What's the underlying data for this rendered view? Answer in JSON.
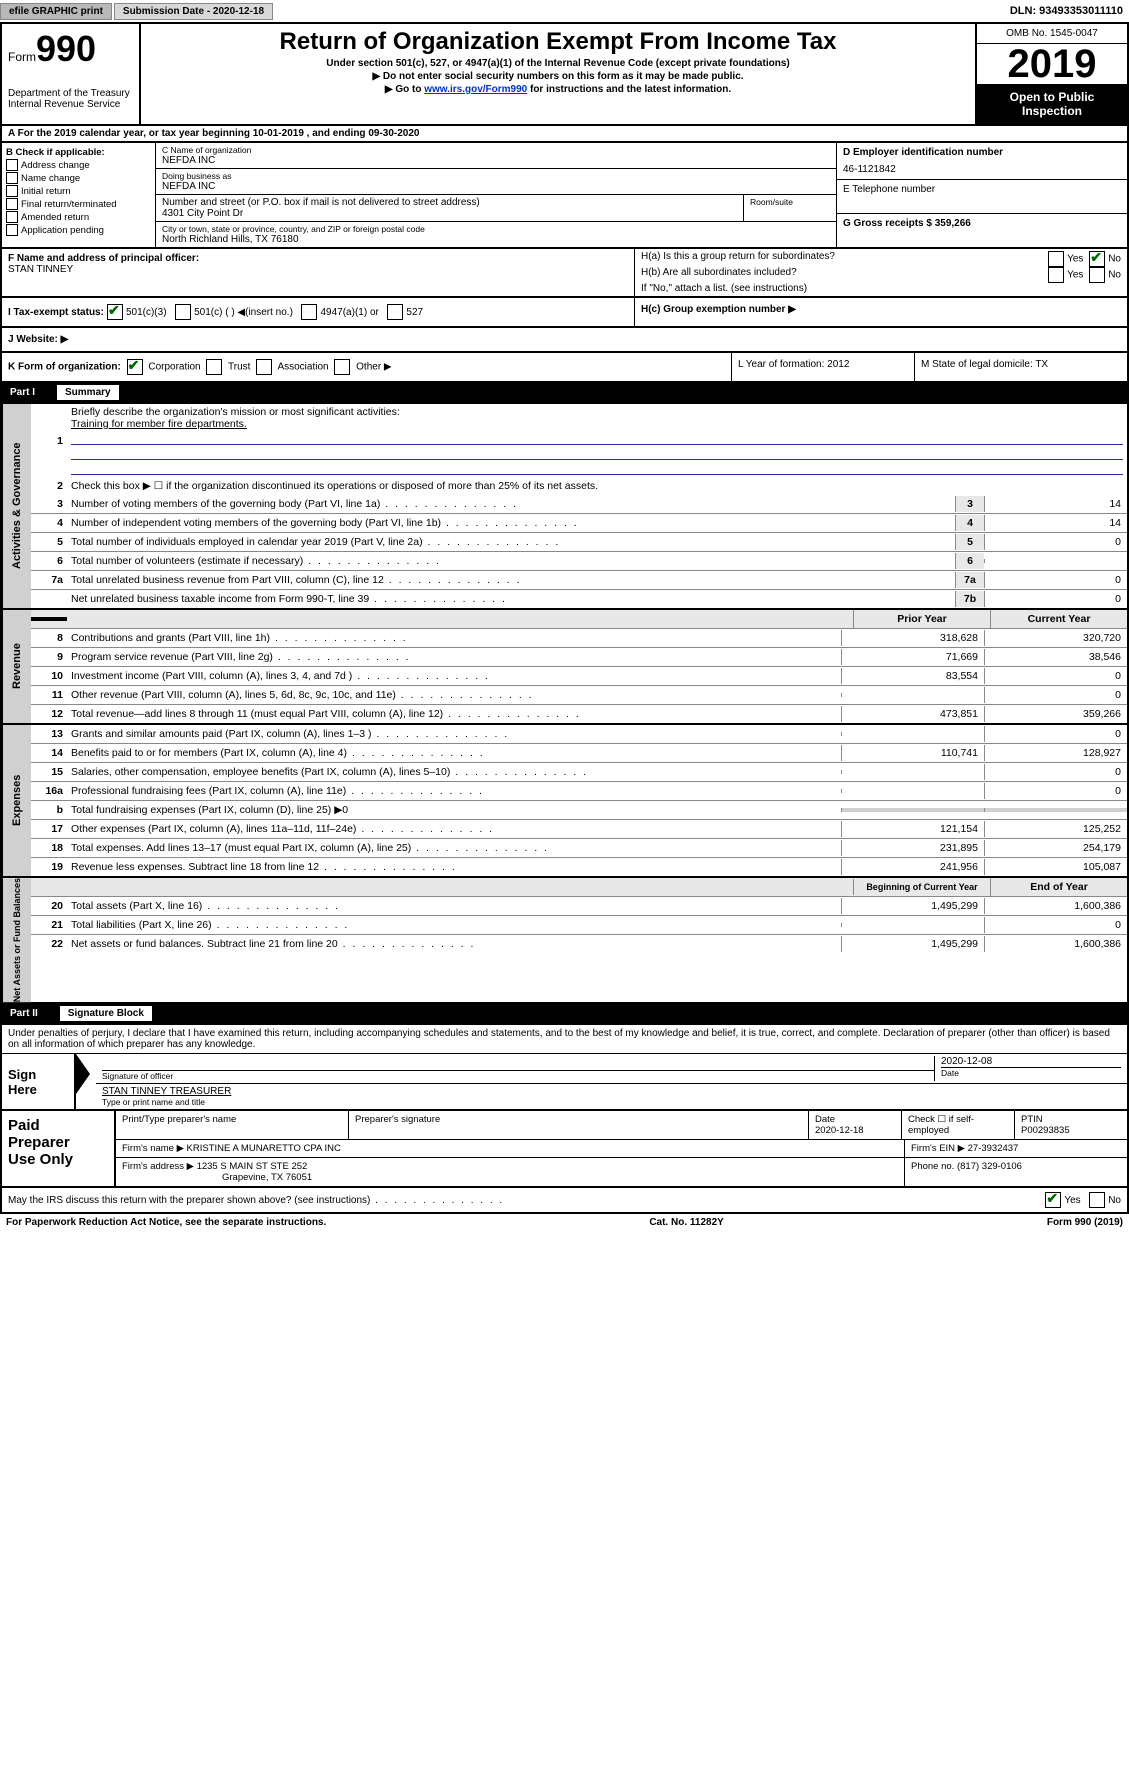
{
  "top_bar": {
    "efile_btn": "efile GRAPHIC print",
    "sub_date_label": "Submission Date - 2020-12-18",
    "dln": "DLN: 93493353011110"
  },
  "header": {
    "form_word": "Form",
    "form_num": "990",
    "dept": "Department of the Treasury",
    "irs": "Internal Revenue Service",
    "title": "Return of Organization Exempt From Income Tax",
    "sub1": "Under section 501(c), 527, or 4947(a)(1) of the Internal Revenue Code (except private foundations)",
    "sub2": "▶ Do not enter social security numbers on this form as it may be made public.",
    "sub3_pre": "▶ Go to ",
    "sub3_link": "www.irs.gov/Form990",
    "sub3_post": " for instructions and the latest information.",
    "omb": "OMB No. 1545-0047",
    "year": "2019",
    "open1": "Open to Public",
    "open2": "Inspection"
  },
  "line_a": "A For the 2019 calendar year, or tax year beginning 10-01-2019      , and ending 09-30-2020",
  "block_b": {
    "title": "B Check if applicable:",
    "opts": [
      "Address change",
      "Name change",
      "Initial return",
      "Final return/terminated",
      "Amended return",
      "Application pending"
    ]
  },
  "block_c": {
    "name_lbl": "C Name of organization",
    "name": "NEFDA INC",
    "dba_lbl": "Doing business as",
    "dba": "NEFDA INC",
    "addr_lbl": "Number and street (or P.O. box if mail is not delivered to street address)",
    "addr": "4301 City Point Dr",
    "room_lbl": "Room/suite",
    "city_lbl": "City or town, state or province, country, and ZIP or foreign postal code",
    "city": "North Richland Hills, TX  76180"
  },
  "block_d": {
    "ein_lbl": "D Employer identification number",
    "ein": "46-1121842",
    "tel_lbl": "E Telephone number",
    "gross_lbl": "G Gross receipts $ 359,266"
  },
  "block_f": {
    "lbl": "F  Name and address of principal officer:",
    "name": "STAN TINNEY"
  },
  "block_h": {
    "ha": "H(a)  Is this a group return for subordinates?",
    "hb": "H(b)  Are all subordinates included?",
    "hb_note": "If \"No,\" attach a list. (see instructions)",
    "hc": "H(c)  Group exemption number ▶",
    "yes": "Yes",
    "no": "No"
  },
  "line_i": {
    "lbl": "I   Tax-exempt status:",
    "o1": "501(c)(3)",
    "o2": "501(c) (  ) ◀(insert no.)",
    "o3": "4947(a)(1) or",
    "o4": "527"
  },
  "line_j": "J   Website: ▶",
  "line_k": {
    "lbl": "K Form of organization:",
    "o1": "Corporation",
    "o2": "Trust",
    "o3": "Association",
    "o4": "Other ▶",
    "l": "L Year of formation: 2012",
    "m": "M State of legal domicile: TX"
  },
  "parts": {
    "p1": "Part I",
    "p1_title": "Summary",
    "p2": "Part II",
    "p2_title": "Signature Block"
  },
  "summary": {
    "l1": "Briefly describe the organization's mission or most significant activities:",
    "l1_text": "Training for member fire departments.",
    "l2": "Check this box ▶ ☐  if the organization discontinued its operations or disposed of more than 25% of its net assets.",
    "rows_ag": [
      {
        "n": "3",
        "d": "Number of voting members of the governing body (Part VI, line 1a)",
        "box": "3",
        "v": "14"
      },
      {
        "n": "4",
        "d": "Number of independent voting members of the governing body (Part VI, line 1b)",
        "box": "4",
        "v": "14"
      },
      {
        "n": "5",
        "d": "Total number of individuals employed in calendar year 2019 (Part V, line 2a)",
        "box": "5",
        "v": "0"
      },
      {
        "n": "6",
        "d": "Total number of volunteers (estimate if necessary)",
        "box": "6",
        "v": ""
      },
      {
        "n": "7a",
        "d": "Total unrelated business revenue from Part VIII, column (C), line 12",
        "box": "7a",
        "v": "0"
      },
      {
        "n": "",
        "d": "Net unrelated business taxable income from Form 990-T, line 39",
        "box": "7b",
        "v": "0"
      }
    ],
    "hdr_prior": "Prior Year",
    "hdr_current": "Current Year",
    "rows_rev": [
      {
        "n": "8",
        "d": "Contributions and grants (Part VIII, line 1h)",
        "p": "318,628",
        "c": "320,720"
      },
      {
        "n": "9",
        "d": "Program service revenue (Part VIII, line 2g)",
        "p": "71,669",
        "c": "38,546"
      },
      {
        "n": "10",
        "d": "Investment income (Part VIII, column (A), lines 3, 4, and 7d )",
        "p": "83,554",
        "c": "0"
      },
      {
        "n": "11",
        "d": "Other revenue (Part VIII, column (A), lines 5, 6d, 8c, 9c, 10c, and 11e)",
        "p": "",
        "c": "0"
      },
      {
        "n": "12",
        "d": "Total revenue—add lines 8 through 11 (must equal Part VIII, column (A), line 12)",
        "p": "473,851",
        "c": "359,266"
      }
    ],
    "rows_exp": [
      {
        "n": "13",
        "d": "Grants and similar amounts paid (Part IX, column (A), lines 1–3 )",
        "p": "",
        "c": "0"
      },
      {
        "n": "14",
        "d": "Benefits paid to or for members (Part IX, column (A), line 4)",
        "p": "110,741",
        "c": "128,927"
      },
      {
        "n": "15",
        "d": "Salaries, other compensation, employee benefits (Part IX, column (A), lines 5–10)",
        "p": "",
        "c": "0"
      },
      {
        "n": "16a",
        "d": "Professional fundraising fees (Part IX, column (A), line 11e)",
        "p": "",
        "c": "0"
      },
      {
        "n": "b",
        "d": "Total fundraising expenses (Part IX, column (D), line 25) ▶0",
        "p": "",
        "c": "",
        "shaded": true
      },
      {
        "n": "17",
        "d": "Other expenses (Part IX, column (A), lines 11a–11d, 11f–24e)",
        "p": "121,154",
        "c": "125,252"
      },
      {
        "n": "18",
        "d": "Total expenses. Add lines 13–17 (must equal Part IX, column (A), line 25)",
        "p": "231,895",
        "c": "254,179"
      },
      {
        "n": "19",
        "d": "Revenue less expenses. Subtract line 18 from line 12",
        "p": "241,956",
        "c": "105,087"
      }
    ],
    "hdr_begin": "Beginning of Current Year",
    "hdr_end": "End of Year",
    "rows_na": [
      {
        "n": "20",
        "d": "Total assets (Part X, line 16)",
        "p": "1,495,299",
        "c": "1,600,386"
      },
      {
        "n": "21",
        "d": "Total liabilities (Part X, line 26)",
        "p": "",
        "c": "0"
      },
      {
        "n": "22",
        "d": "Net assets or fund balances. Subtract line 21 from line 20",
        "p": "1,495,299",
        "c": "1,600,386"
      }
    ]
  },
  "side_labels": {
    "ag": "Activities & Governance",
    "rev": "Revenue",
    "exp": "Expenses",
    "na": "Net Assets or Fund Balances"
  },
  "sig": {
    "note": "Under penalties of perjury, I declare that I have examined this return, including accompanying schedules and statements, and to the best of my knowledge and belief, it is true, correct, and complete. Declaration of preparer (other than officer) is based on all information of which preparer has any knowledge.",
    "sign": "Sign",
    "here": "Here",
    "date": "2020-12-08",
    "sig_of_officer": "Signature of officer",
    "date_lbl": "Date",
    "name_title": "STAN TINNEY TREASURER",
    "type_lbl": "Type or print name and title"
  },
  "paid": {
    "title1": "Paid",
    "title2": "Preparer",
    "title3": "Use Only",
    "h1": "Print/Type preparer's name",
    "h2": "Preparer's signature",
    "h3": "Date",
    "h3v": "2020-12-18",
    "h4_lbl": "Check ☐ if self-employed",
    "h5_lbl": "PTIN",
    "h5v": "P00293835",
    "firm_name_lbl": "Firm's name      ▶",
    "firm_name": "KRISTINE A MUNARETTO CPA INC",
    "firm_ein_lbl": "Firm's EIN ▶",
    "firm_ein": "27-3932437",
    "firm_addr_lbl": "Firm's address ▶",
    "firm_addr1": "1235 S MAIN ST STE 252",
    "firm_addr2": "Grapevine, TX  76051",
    "phone_lbl": "Phone no.",
    "phone": "(817) 329-0106"
  },
  "discuss": {
    "q": "May the IRS discuss this return with the preparer shown above? (see instructions)",
    "yes": "Yes",
    "no": "No"
  },
  "footer": {
    "left": "For Paperwork Reduction Act Notice, see the separate instructions.",
    "mid": "Cat. No. 11282Y",
    "right": "Form 990 (2019)"
  }
}
